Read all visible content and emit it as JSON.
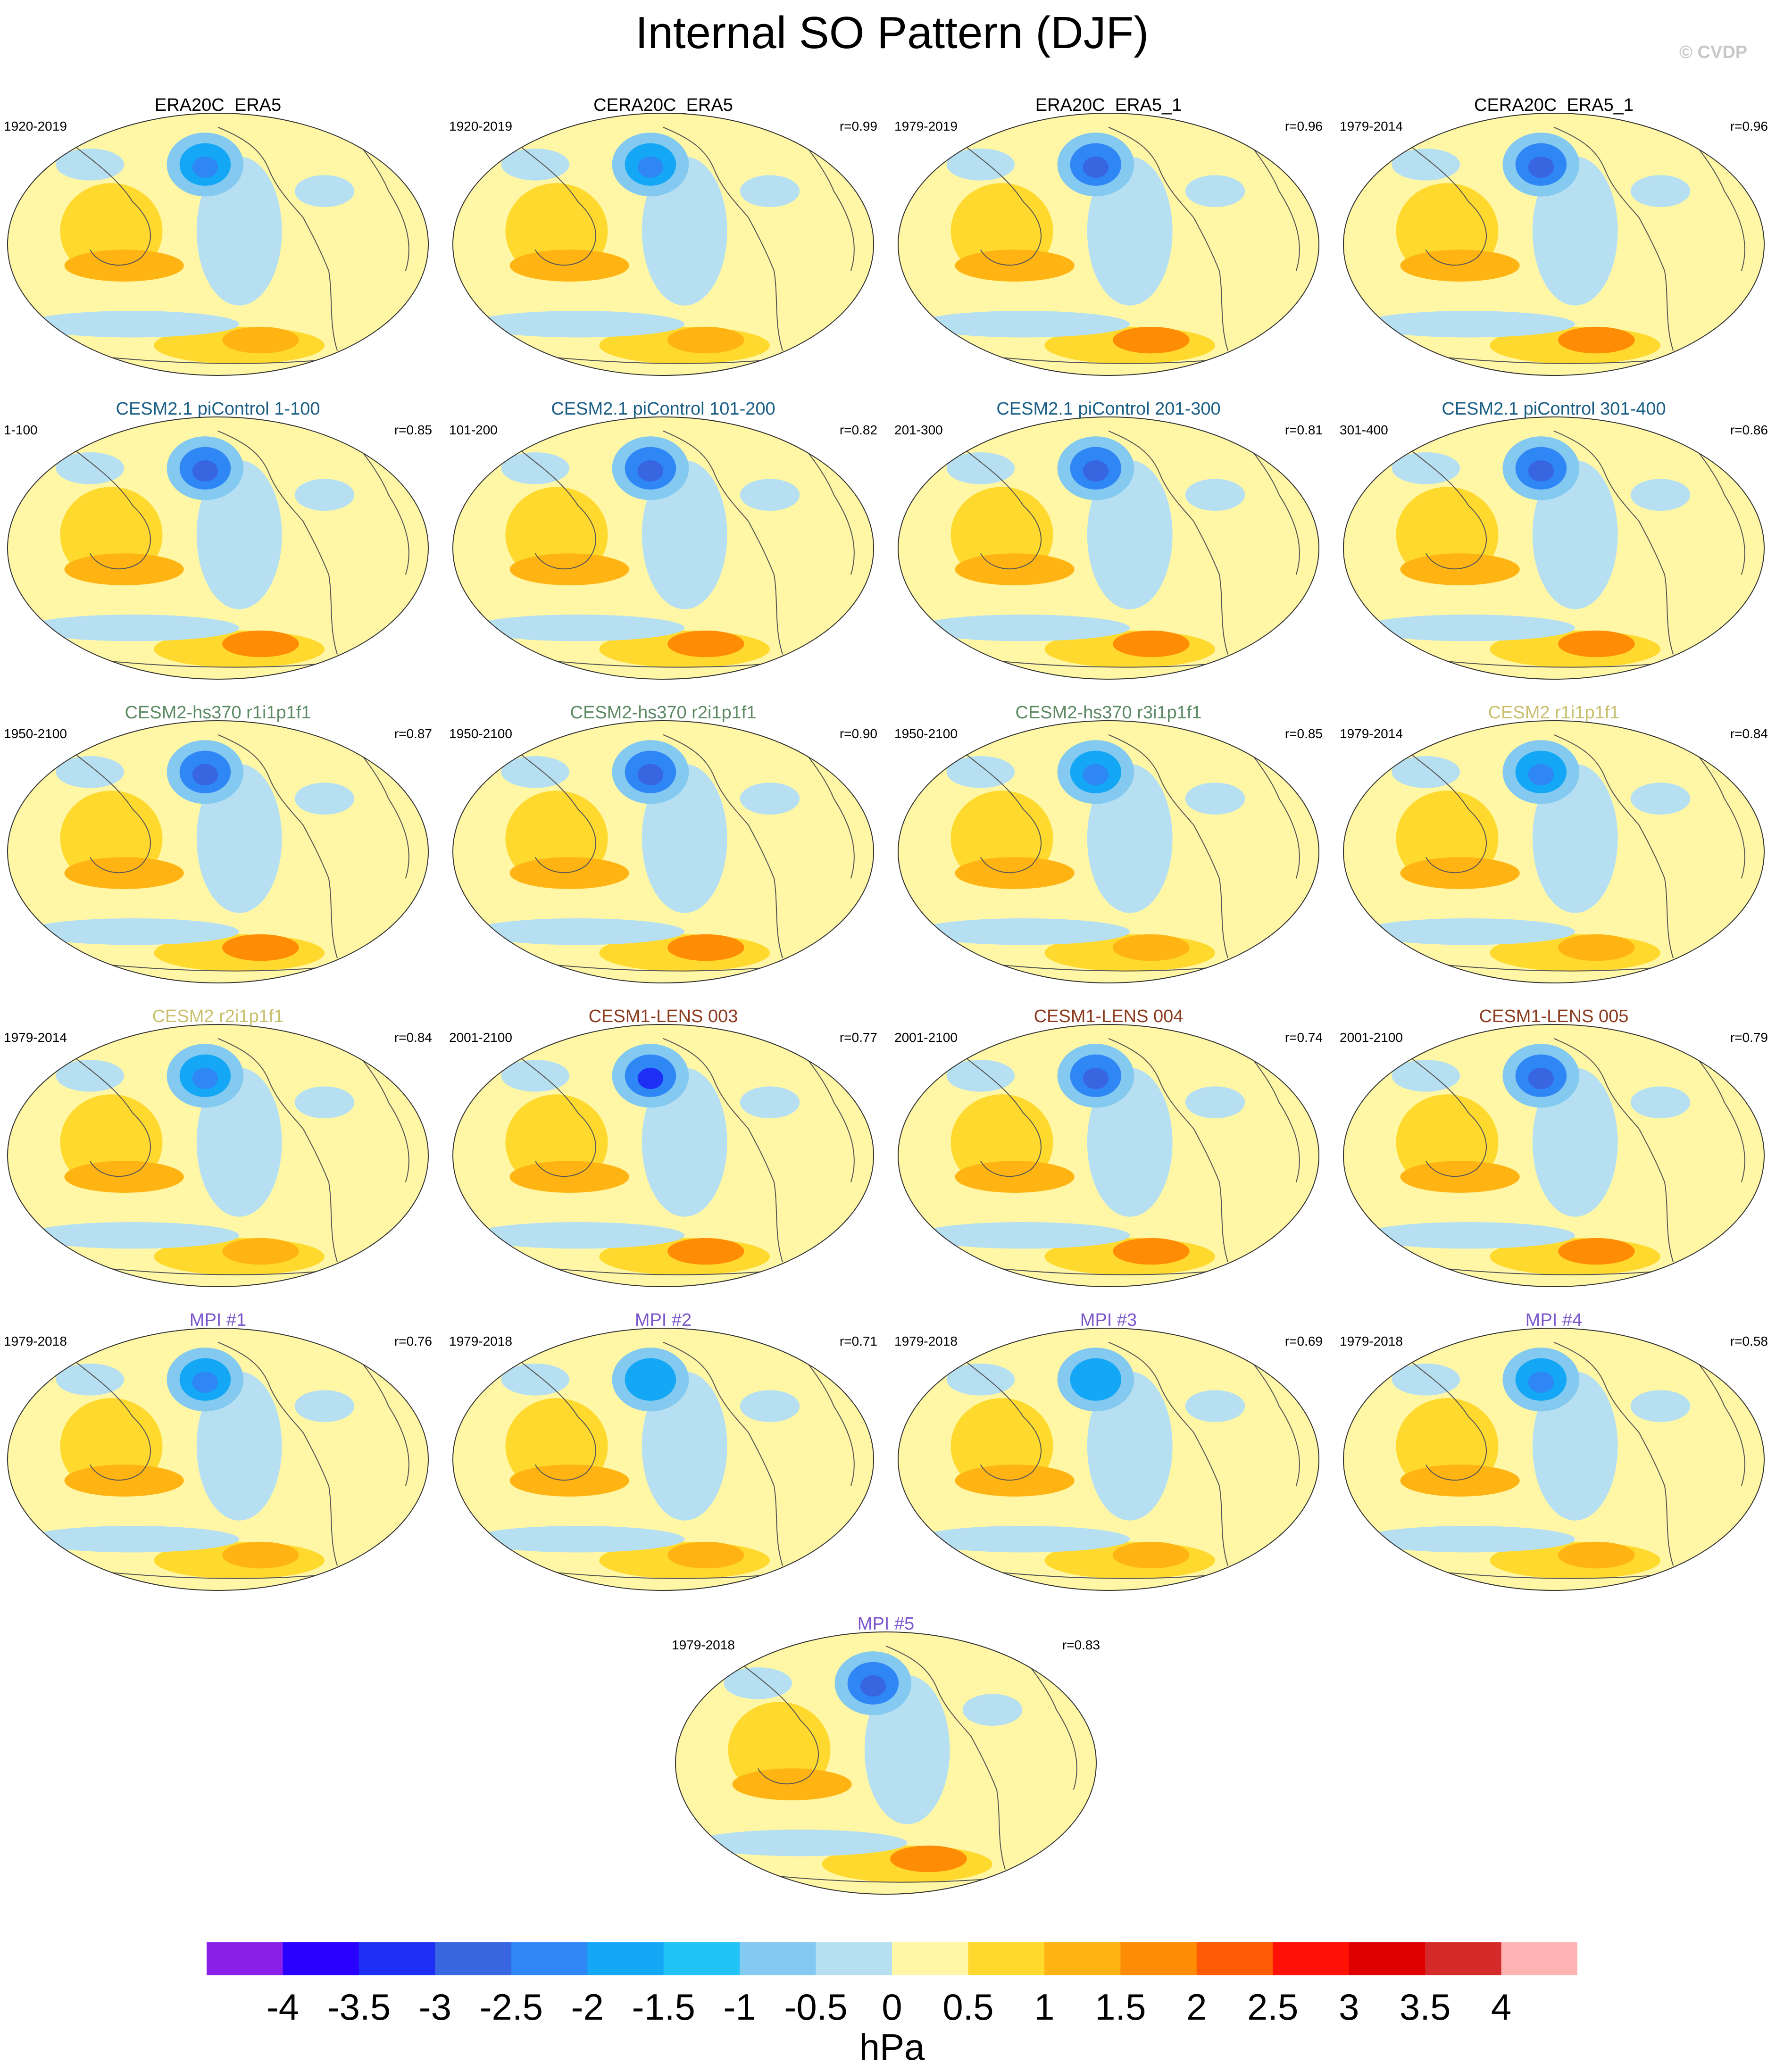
{
  "title": "Internal SO Pattern (DJF)",
  "watermark": "© CVDP",
  "title_colors": {
    "observations": "#000000",
    "cesm21_picontrol": "#1a5e86",
    "cesm2_hs370": "#5d8a64",
    "cesm2": "#c8c06e",
    "cesm1_lens": "#8b3a1e",
    "mpi": "#7a55cc"
  },
  "panels": [
    {
      "name": "ERA20C_ERA5",
      "period": "1920-2019",
      "r": "",
      "group": "observations",
      "ano": 0.45
    },
    {
      "name": "CERA20C_ERA5",
      "period": "1920-2019",
      "r": "r=0.99",
      "group": "observations",
      "ano": 0.45
    },
    {
      "name": "ERA20C_ERA5_1",
      "period": "1979-2019",
      "r": "r=0.96",
      "group": "observations",
      "ano": 0.65
    },
    {
      "name": "CERA20C_ERA5_1",
      "period": "1979-2014",
      "r": "r=0.96",
      "group": "observations",
      "ano": 0.6
    },
    {
      "name": "CESM2.1 piControl 1-100",
      "period": "1-100",
      "r": "r=0.85",
      "group": "cesm21_picontrol",
      "ano": 0.5
    },
    {
      "name": "CESM2.1 piControl 101-200",
      "period": "101-200",
      "r": "r=0.82",
      "group": "cesm21_picontrol",
      "ano": 0.55
    },
    {
      "name": "CESM2.1 piControl 201-300",
      "period": "201-300",
      "r": "r=0.81",
      "group": "cesm21_picontrol",
      "ano": 0.6
    },
    {
      "name": "CESM2.1 piControl 301-400",
      "period": "301-400",
      "r": "r=0.86",
      "group": "cesm21_picontrol",
      "ano": 0.5
    },
    {
      "name": "CESM2-hs370 r1i1p1f1",
      "period": "1950-2100",
      "r": "r=0.87",
      "group": "cesm2_hs370",
      "ano": 0.5
    },
    {
      "name": "CESM2-hs370 r2i1p1f1",
      "period": "1950-2100",
      "r": "r=0.90",
      "group": "cesm2_hs370",
      "ano": 0.5
    },
    {
      "name": "CESM2-hs370 r3i1p1f1",
      "period": "1950-2100",
      "r": "r=0.85",
      "group": "cesm2_hs370",
      "ano": 0.45
    },
    {
      "name": "CESM2 r1i1p1f1",
      "period": "1979-2014",
      "r": "r=0.84",
      "group": "cesm2",
      "ano": 0.45
    },
    {
      "name": "CESM2 r2i1p1f1",
      "period": "1979-2014",
      "r": "r=0.84",
      "group": "cesm2",
      "ano": 0.4
    },
    {
      "name": "CESM1-LENS 003",
      "period": "2001-2100",
      "r": "r=0.77",
      "group": "cesm1_lens",
      "ano": 0.7
    },
    {
      "name": "CESM1-LENS 004",
      "period": "2001-2100",
      "r": "r=0.74",
      "group": "cesm1_lens",
      "ano": 0.6
    },
    {
      "name": "CESM1-LENS 005",
      "period": "2001-2100",
      "r": "r=0.79",
      "group": "cesm1_lens",
      "ano": 0.6
    },
    {
      "name": "MPI #1",
      "period": "1979-2018",
      "r": "r=0.76",
      "group": "mpi",
      "ano": 0.45
    },
    {
      "name": "MPI #2",
      "period": "1979-2018",
      "r": "r=0.71",
      "group": "mpi",
      "ano": 0.2
    },
    {
      "name": "MPI #3",
      "period": "1979-2018",
      "r": "r=0.69",
      "group": "mpi",
      "ano": 0.2
    },
    {
      "name": "MPI #4",
      "period": "1979-2018",
      "r": "r=0.58",
      "group": "mpi",
      "ano": 0.35
    },
    {
      "name": "MPI #5",
      "period": "1979-2018",
      "r": "r=0.83",
      "group": "mpi",
      "ano": 0.6
    }
  ],
  "colorbar": {
    "labels": [
      "-4",
      "-3.5",
      "-3",
      "-2.5",
      "-2",
      "-1.5",
      "-1",
      "-0.5",
      "0",
      "0.5",
      "1",
      "1.5",
      "2",
      "2.5",
      "3",
      "3.5",
      "4"
    ],
    "colors": [
      "#8a20e8",
      "#2a00ff",
      "#1e2ff5",
      "#3865e0",
      "#2f86f5",
      "#14a7f5",
      "#22c4f8",
      "#84c9ef",
      "#b6e0f2",
      "#fff7a5",
      "#ffd92e",
      "#ffb414",
      "#ff8c05",
      "#ff5a05",
      "#ff1105",
      "#df0000",
      "#d42a2a",
      "#ffb3b3"
    ],
    "units": "hPa"
  }
}
